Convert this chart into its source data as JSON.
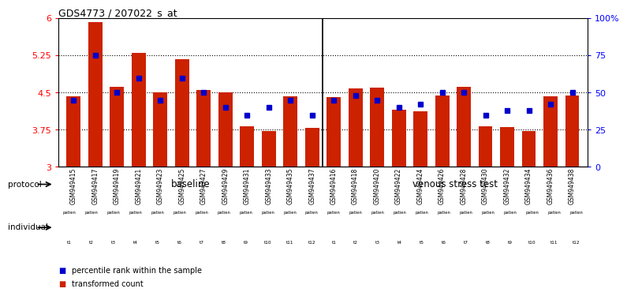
{
  "title": "GDS4773 / 207022_s_at",
  "samples": [
    "GSM949415",
    "GSM949417",
    "GSM949419",
    "GSM949421",
    "GSM949423",
    "GSM949425",
    "GSM949427",
    "GSM949429",
    "GSM949431",
    "GSM949433",
    "GSM949435",
    "GSM949437",
    "GSM949416",
    "GSM949418",
    "GSM949420",
    "GSM949422",
    "GSM949424",
    "GSM949426",
    "GSM949428",
    "GSM949430",
    "GSM949432",
    "GSM949434",
    "GSM949436",
    "GSM949438"
  ],
  "red_values": [
    4.43,
    5.92,
    4.62,
    5.3,
    4.5,
    5.18,
    4.55,
    4.5,
    3.82,
    3.72,
    4.42,
    3.78,
    4.41,
    4.58,
    4.6,
    4.15,
    4.13,
    4.44,
    4.62,
    3.82,
    3.8,
    3.73,
    4.42,
    4.44
  ],
  "blue_values_pct": [
    45,
    75,
    50,
    60,
    45,
    60,
    50,
    40,
    35,
    40,
    45,
    35,
    45,
    48,
    45,
    40,
    42,
    50,
    50,
    35,
    38,
    38,
    42,
    50
  ],
  "individual_labels": [
    "t1",
    "t2",
    "t3",
    "t4",
    "t5",
    "t6",
    "t7",
    "t8",
    "t9",
    "t10",
    "t11",
    "t12"
  ],
  "ymin": 3.0,
  "ymax": 6.0,
  "yticks": [
    3.0,
    3.75,
    4.5,
    5.25,
    6.0
  ],
  "ytick_labels": [
    "3",
    "3.75",
    "4.5",
    "5.25",
    "6"
  ],
  "right_yticks_pct": [
    0,
    25,
    50,
    75,
    100
  ],
  "right_ytick_labels": [
    "0",
    "25",
    "50",
    "75",
    "100%"
  ],
  "bar_color": "#CC2200",
  "blue_color": "#0000CC",
  "baseline_color": "#99FF99",
  "stress_color": "#66EE66",
  "cell_colors": [
    "#DDDDDD",
    "#FF99FF"
  ],
  "bar_width": 0.65
}
